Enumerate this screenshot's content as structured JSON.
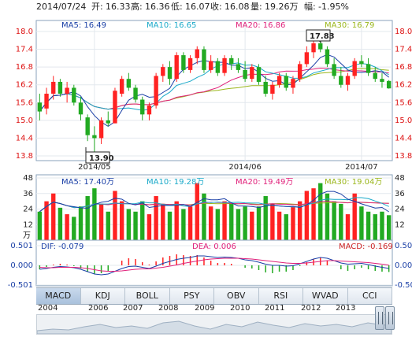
{
  "header": {
    "date": "2014/07/24",
    "open_label": "开:",
    "open": "16.33",
    "high_label": "高:",
    "high": "16.36",
    "low_label": "低:",
    "low": "16.07",
    "close_label": "收:",
    "close": "16.08",
    "volume_label": "量:",
    "volume": "19.26万",
    "change_label": "幅:",
    "change": "-1.95%"
  },
  "price_legend": {
    "ma5": "MA5: 16.49",
    "ma10": "MA10: 16.65",
    "ma20": "MA20: 16.86",
    "ma30": "MA30: 16.79"
  },
  "volume_legend": {
    "ma5": "MA5: 17.40万",
    "ma10": "MA10: 19.28万",
    "ma20": "MA20: 19.49万",
    "ma30": "MA30: 19.04万"
  },
  "macd_legend": {
    "dif": "DIF: -0.079",
    "dea": "DEA: 0.006",
    "macd": "MACD: -0.169"
  },
  "price_axis": {
    "ticks": [
      "18.0",
      "17.4",
      "16.8",
      "16.2",
      "15.6",
      "15.0",
      "14.4",
      "13.8"
    ]
  },
  "volume_axis": {
    "ticks": [
      "48",
      "36",
      "24",
      "12"
    ],
    "unit": "万"
  },
  "macd_axis": {
    "ticks": [
      "0.501",
      "0.000",
      "-0.501"
    ]
  },
  "x_axis": {
    "labels": [
      "2014/05",
      "2014/06",
      "2014/07"
    ]
  },
  "annotations": {
    "max_label": "17.83",
    "min_label": "13.90"
  },
  "tabs": [
    "MACD",
    "KDJ",
    "BOLL",
    "PSY",
    "OBV",
    "RSI",
    "WVAD",
    "CCI"
  ],
  "active_tab": "MACD",
  "navigator_years": [
    "2004",
    "2006",
    "2007",
    "2008",
    "2009",
    "2010",
    "2011",
    "2012",
    "2013"
  ],
  "colors": {
    "up": "#ff2222",
    "down": "#22aa22",
    "ma5": "#1a3fa6",
    "ma10": "#19a9c9",
    "ma20": "#e0207a",
    "ma30": "#9ab61a"
  },
  "chart_data": [
    {
      "type": "candlestick",
      "title": "",
      "ylim": [
        13.8,
        18.0
      ],
      "x_labels": [
        "2014/05",
        "2014/06",
        "2014/07"
      ],
      "candles": [
        {
          "o": 15.6,
          "h": 15.9,
          "l": 15.0,
          "c": 15.3
        },
        {
          "o": 15.4,
          "h": 16.1,
          "l": 15.2,
          "c": 15.9
        },
        {
          "o": 15.9,
          "h": 16.5,
          "l": 15.7,
          "c": 16.3
        },
        {
          "o": 16.3,
          "h": 16.4,
          "l": 15.8,
          "c": 15.9
        },
        {
          "o": 15.9,
          "h": 16.3,
          "l": 15.6,
          "c": 16.1
        },
        {
          "o": 16.1,
          "h": 16.2,
          "l": 15.5,
          "c": 15.6
        },
        {
          "o": 15.6,
          "h": 15.8,
          "l": 15.0,
          "c": 15.2
        },
        {
          "o": 15.1,
          "h": 15.2,
          "l": 14.3,
          "c": 14.5
        },
        {
          "o": 14.5,
          "h": 14.8,
          "l": 13.9,
          "c": 14.4
        },
        {
          "o": 14.4,
          "h": 15.1,
          "l": 14.2,
          "c": 15.0
        },
        {
          "o": 15.0,
          "h": 15.3,
          "l": 14.8,
          "c": 14.9
        },
        {
          "o": 14.9,
          "h": 16.1,
          "l": 14.9,
          "c": 16.0
        },
        {
          "o": 15.9,
          "h": 16.5,
          "l": 15.8,
          "c": 16.4
        },
        {
          "o": 16.4,
          "h": 16.6,
          "l": 16.0,
          "c": 16.1
        },
        {
          "o": 16.1,
          "h": 16.2,
          "l": 15.6,
          "c": 15.7
        },
        {
          "o": 15.7,
          "h": 15.8,
          "l": 15.0,
          "c": 15.2
        },
        {
          "o": 15.2,
          "h": 15.6,
          "l": 15.0,
          "c": 15.5
        },
        {
          "o": 15.5,
          "h": 16.6,
          "l": 15.4,
          "c": 16.5
        },
        {
          "o": 16.5,
          "h": 16.9,
          "l": 16.3,
          "c": 16.8
        },
        {
          "o": 16.8,
          "h": 17.0,
          "l": 16.2,
          "c": 16.4
        },
        {
          "o": 16.4,
          "h": 17.3,
          "l": 16.3,
          "c": 17.2
        },
        {
          "o": 17.2,
          "h": 17.3,
          "l": 16.6,
          "c": 16.7
        },
        {
          "o": 16.7,
          "h": 17.2,
          "l": 16.6,
          "c": 17.1
        },
        {
          "o": 17.1,
          "h": 17.5,
          "l": 16.9,
          "c": 17.4
        },
        {
          "o": 17.4,
          "h": 17.5,
          "l": 16.6,
          "c": 16.7
        },
        {
          "o": 16.7,
          "h": 17.2,
          "l": 16.6,
          "c": 17.0
        },
        {
          "o": 17.0,
          "h": 17.1,
          "l": 16.5,
          "c": 16.6
        },
        {
          "o": 16.6,
          "h": 17.2,
          "l": 16.5,
          "c": 17.1
        },
        {
          "o": 17.1,
          "h": 17.2,
          "l": 16.7,
          "c": 16.9
        },
        {
          "o": 16.9,
          "h": 17.1,
          "l": 16.6,
          "c": 16.7
        },
        {
          "o": 16.7,
          "h": 17.0,
          "l": 16.3,
          "c": 16.4
        },
        {
          "o": 16.4,
          "h": 16.9,
          "l": 16.3,
          "c": 16.8
        },
        {
          "o": 16.8,
          "h": 16.9,
          "l": 16.2,
          "c": 16.3
        },
        {
          "o": 16.3,
          "h": 16.5,
          "l": 15.8,
          "c": 15.9
        },
        {
          "o": 15.9,
          "h": 16.3,
          "l": 15.7,
          "c": 16.2
        },
        {
          "o": 16.2,
          "h": 16.6,
          "l": 16.1,
          "c": 16.5
        },
        {
          "o": 16.5,
          "h": 16.6,
          "l": 16.0,
          "c": 16.1
        },
        {
          "o": 16.1,
          "h": 16.5,
          "l": 15.9,
          "c": 16.4
        },
        {
          "o": 16.4,
          "h": 17.0,
          "l": 16.3,
          "c": 16.9
        },
        {
          "o": 16.9,
          "h": 17.5,
          "l": 16.8,
          "c": 17.3
        },
        {
          "o": 17.3,
          "h": 17.8,
          "l": 17.1,
          "c": 17.6
        },
        {
          "o": 17.6,
          "h": 17.83,
          "l": 17.3,
          "c": 17.4
        },
        {
          "o": 17.4,
          "h": 17.5,
          "l": 16.8,
          "c": 16.9
        },
        {
          "o": 16.9,
          "h": 17.1,
          "l": 16.4,
          "c": 16.5
        },
        {
          "o": 16.5,
          "h": 16.8,
          "l": 16.1,
          "c": 16.2
        },
        {
          "o": 16.2,
          "h": 16.6,
          "l": 16.0,
          "c": 16.5
        },
        {
          "o": 16.5,
          "h": 17.1,
          "l": 16.4,
          "c": 17.0
        },
        {
          "o": 17.0,
          "h": 17.2,
          "l": 16.8,
          "c": 16.9
        },
        {
          "o": 16.9,
          "h": 17.1,
          "l": 16.5,
          "c": 16.6
        },
        {
          "o": 16.6,
          "h": 16.8,
          "l": 16.3,
          "c": 16.4
        },
        {
          "o": 16.4,
          "h": 16.6,
          "l": 16.1,
          "c": 16.3
        },
        {
          "o": 16.33,
          "h": 16.36,
          "l": 16.07,
          "c": 16.08
        }
      ]
    },
    {
      "type": "bar",
      "title": "",
      "unit": "万",
      "ylim": [
        0,
        48
      ],
      "values": [
        22,
        30,
        36,
        25,
        20,
        18,
        26,
        34,
        40,
        28,
        22,
        38,
        30,
        24,
        22,
        30,
        20,
        34,
        28,
        22,
        30,
        24,
        26,
        44,
        36,
        26,
        24,
        30,
        28,
        24,
        26,
        22,
        26,
        34,
        28,
        22,
        20,
        26,
        30,
        38,
        40,
        44,
        36,
        30,
        28,
        20,
        36,
        26,
        22,
        20,
        22,
        19.26
      ]
    },
    {
      "type": "line",
      "title": "",
      "ylim": [
        -0.501,
        0.501
      ],
      "series": [
        {
          "name": "DIF",
          "values": [
            -0.1,
            -0.08,
            -0.05,
            -0.03,
            -0.04,
            -0.06,
            -0.1,
            -0.16,
            -0.22,
            -0.24,
            -0.22,
            -0.15,
            -0.08,
            -0.03,
            -0.02,
            -0.05,
            -0.08,
            -0.02,
            0.05,
            0.1,
            0.15,
            0.18,
            0.2,
            0.24,
            0.24,
            0.22,
            0.2,
            0.21,
            0.2,
            0.18,
            0.14,
            0.12,
            0.08,
            0.03,
            0.0,
            0.0,
            -0.02,
            -0.01,
            0.04,
            0.1,
            0.16,
            0.2,
            0.18,
            0.12,
            0.06,
            0.03,
            0.04,
            0.05,
            0.02,
            -0.02,
            -0.05,
            -0.079
          ]
        },
        {
          "name": "DEA",
          "values": [
            -0.05,
            -0.06,
            -0.06,
            -0.05,
            -0.05,
            -0.05,
            -0.06,
            -0.08,
            -0.11,
            -0.14,
            -0.15,
            -0.15,
            -0.14,
            -0.12,
            -0.1,
            -0.09,
            -0.09,
            -0.07,
            -0.05,
            -0.02,
            0.01,
            0.05,
            0.08,
            0.11,
            0.14,
            0.16,
            0.17,
            0.18,
            0.18,
            0.18,
            0.17,
            0.16,
            0.14,
            0.12,
            0.1,
            0.08,
            0.06,
            0.05,
            0.05,
            0.06,
            0.08,
            0.1,
            0.12,
            0.12,
            0.11,
            0.1,
            0.09,
            0.08,
            0.07,
            0.05,
            0.03,
            0.006
          ]
        },
        {
          "name": "MACD",
          "values": [
            -0.1,
            -0.04,
            0.02,
            0.04,
            0.02,
            -0.02,
            -0.08,
            -0.16,
            -0.22,
            -0.2,
            -0.14,
            0.0,
            0.12,
            0.18,
            0.16,
            0.08,
            0.02,
            0.1,
            0.2,
            0.24,
            0.28,
            0.26,
            0.24,
            0.26,
            0.2,
            0.12,
            0.06,
            0.06,
            0.04,
            0.0,
            -0.06,
            -0.08,
            -0.12,
            -0.18,
            -0.2,
            -0.16,
            -0.16,
            -0.12,
            -0.02,
            0.08,
            0.16,
            0.2,
            0.12,
            0.0,
            -0.1,
            -0.14,
            -0.1,
            -0.06,
            -0.1,
            -0.14,
            -0.16,
            -0.169
          ]
        }
      ]
    }
  ]
}
